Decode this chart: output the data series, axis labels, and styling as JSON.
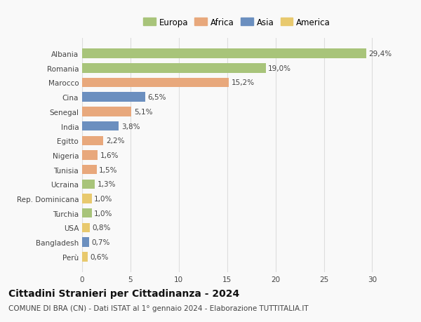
{
  "categories": [
    "Perù",
    "Bangladesh",
    "USA",
    "Turchia",
    "Rep. Dominicana",
    "Ucraina",
    "Tunisia",
    "Nigeria",
    "Egitto",
    "India",
    "Senegal",
    "Cina",
    "Marocco",
    "Romania",
    "Albania"
  ],
  "values": [
    0.6,
    0.7,
    0.8,
    1.0,
    1.0,
    1.3,
    1.5,
    1.6,
    2.2,
    3.8,
    5.1,
    6.5,
    15.2,
    19.0,
    29.4
  ],
  "labels": [
    "0,6%",
    "0,7%",
    "0,8%",
    "1,0%",
    "1,0%",
    "1,3%",
    "1,5%",
    "1,6%",
    "2,2%",
    "3,8%",
    "5,1%",
    "6,5%",
    "15,2%",
    "19,0%",
    "29,4%"
  ],
  "continents": [
    "America",
    "Asia",
    "America",
    "Europa",
    "America",
    "Europa",
    "Africa",
    "Africa",
    "Africa",
    "Asia",
    "Africa",
    "Asia",
    "Africa",
    "Europa",
    "Europa"
  ],
  "continent_colors": {
    "Europa": "#a8c47a",
    "Africa": "#e8a87c",
    "Asia": "#6b8fbf",
    "America": "#e8c96e"
  },
  "legend_order": [
    "Europa",
    "Africa",
    "Asia",
    "America"
  ],
  "title": "Cittadini Stranieri per Cittadinanza - 2024",
  "subtitle": "COMUNE DI BRA (CN) - Dati ISTAT al 1° gennaio 2024 - Elaborazione TUTTITALIA.IT",
  "xlim": [
    0,
    32
  ],
  "xticks": [
    0,
    5,
    10,
    15,
    20,
    25,
    30
  ],
  "background_color": "#f9f9f9",
  "grid_color": "#dddddd",
  "bar_height": 0.65,
  "title_fontsize": 10,
  "subtitle_fontsize": 7.5,
  "label_fontsize": 7.5,
  "tick_fontsize": 7.5,
  "legend_fontsize": 8.5
}
